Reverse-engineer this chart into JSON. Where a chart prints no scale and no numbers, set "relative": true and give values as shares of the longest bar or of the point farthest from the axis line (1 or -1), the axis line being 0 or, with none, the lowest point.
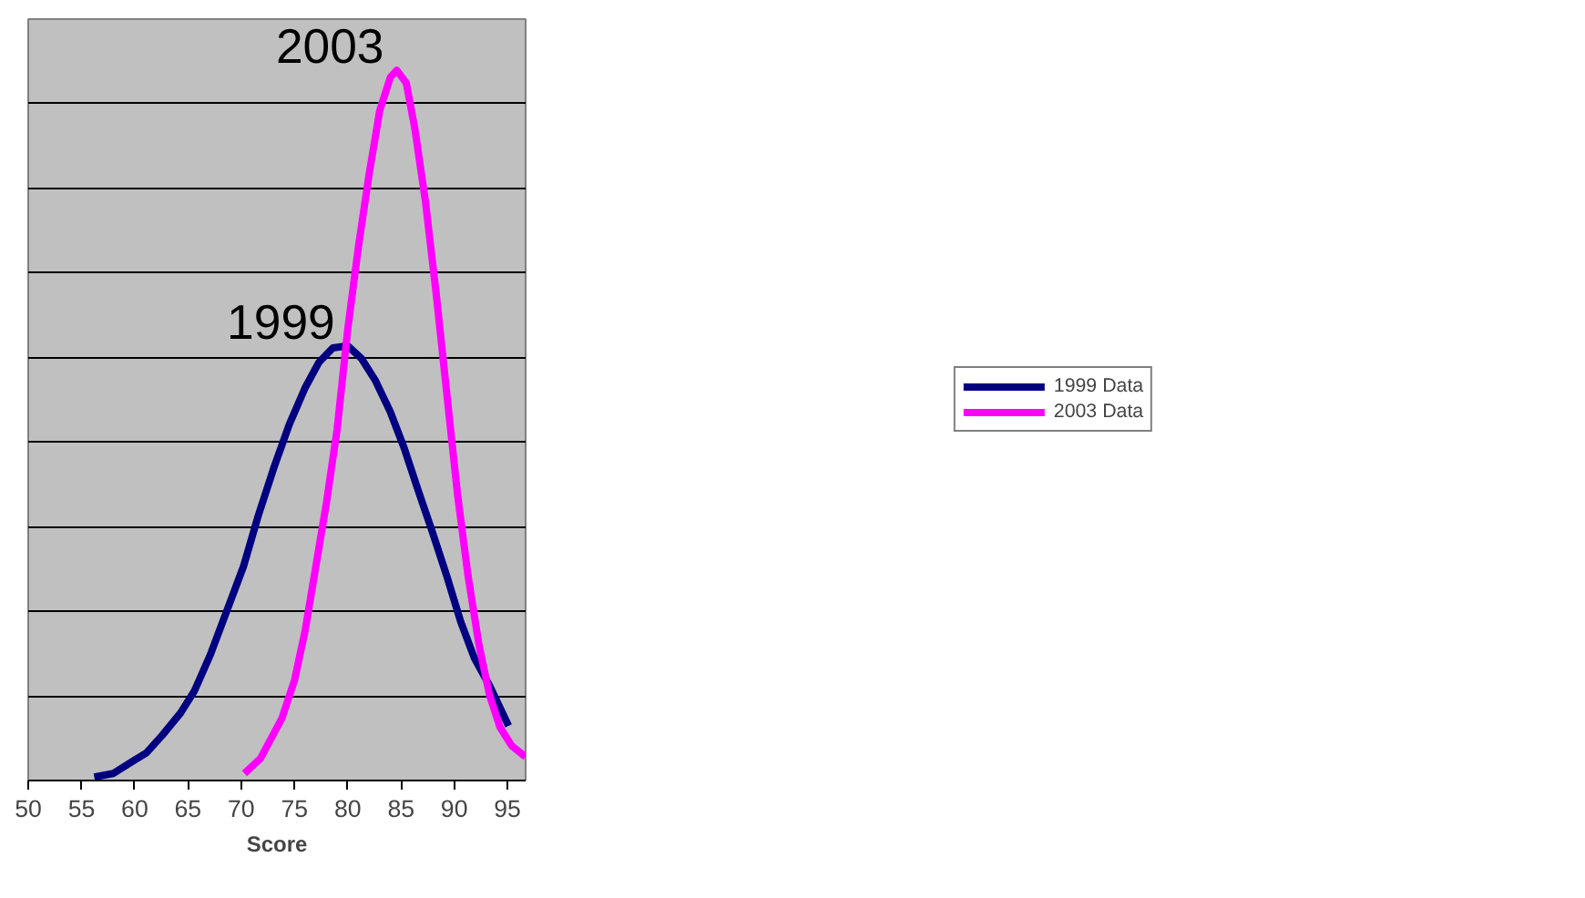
{
  "chart_data": {
    "type": "line",
    "relative": true,
    "xlabel": "Score",
    "xlim": [
      50,
      96.7
    ],
    "xticks": [
      50,
      55,
      60,
      65,
      70,
      75,
      80,
      85,
      90,
      95
    ],
    "grid": "y",
    "legend": "right",
    "line_style": "solid",
    "marker": "none",
    "series": [
      {
        "name": "1999 Data",
        "color": "#000080",
        "x": [
          56.2,
          58.0,
          59.7,
          61.1,
          62.6,
          64.3,
          65.6,
          67.1,
          68.6,
          70.2,
          71.6,
          73.1,
          74.5,
          76.0,
          77.3,
          78.6,
          80.0,
          81.3,
          82.6,
          84.0,
          85.3,
          86.6,
          87.9,
          89.3,
          90.6,
          91.9,
          93.3,
          95.1
        ],
        "values": [
          0.005,
          0.01,
          0.026,
          0.039,
          0.064,
          0.095,
          0.126,
          0.177,
          0.237,
          0.301,
          0.373,
          0.442,
          0.501,
          0.553,
          0.589,
          0.609,
          0.612,
          0.594,
          0.563,
          0.519,
          0.468,
          0.409,
          0.352,
          0.288,
          0.224,
          0.172,
          0.134,
          0.077
        ]
      },
      {
        "name": "2003 Data",
        "color": "#ff00ff",
        "x": [
          70.3,
          71.8,
          73.8,
          75.0,
          76.0,
          77.0,
          78.0,
          79.0,
          80.0,
          81.0,
          82.0,
          83.0,
          84.0,
          84.6,
          85.5,
          86.3,
          87.3,
          88.3,
          89.3,
          90.3,
          91.3,
          92.3,
          93.3,
          94.3,
          95.4,
          96.7
        ],
        "values": [
          0.01,
          0.031,
          0.087,
          0.141,
          0.211,
          0.301,
          0.391,
          0.494,
          0.635,
          0.751,
          0.853,
          0.943,
          0.99,
          1.0,
          0.982,
          0.918,
          0.815,
          0.686,
          0.545,
          0.404,
          0.288,
          0.193,
          0.121,
          0.075,
          0.049,
          0.033
        ]
      }
    ],
    "annotations": [
      "1999",
      "2003"
    ]
  }
}
